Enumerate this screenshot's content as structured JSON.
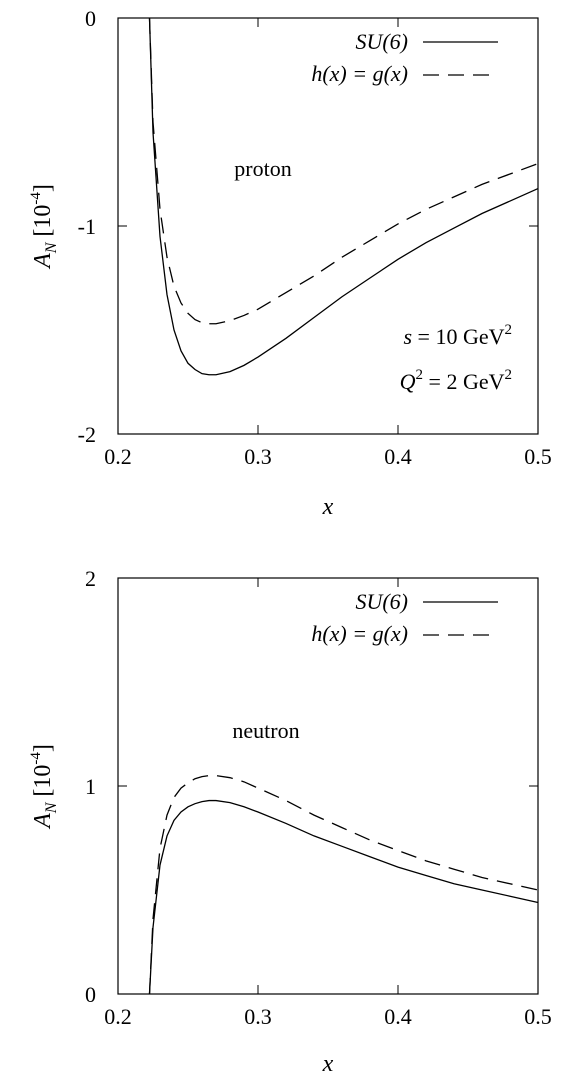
{
  "chart_data": [
    {
      "type": "line",
      "xlabel": "x",
      "ylabel_main": "A",
      "ylabel_sub": "N",
      "ylabel_unit_base": "[10",
      "ylabel_unit_exp": "-4",
      "ylabel_unit_close": "]",
      "xlim": [
        0.2,
        0.5
      ],
      "ylim": [
        -2,
        0
      ],
      "xticks": [
        0.2,
        0.3,
        0.4,
        0.5
      ],
      "xtick_labels": [
        "0.2",
        "0.3",
        "0.4",
        "0.5"
      ],
      "yticks": [
        -2,
        -1,
        0
      ],
      "ytick_labels": [
        "-2",
        "-1",
        "0"
      ],
      "legend_position": "top-right",
      "annotations": {
        "label": "proton",
        "s_line": "s = 10 GeV",
        "s_exp": "2",
        "q_line_base": "Q",
        "q_line_exp": "2",
        "q_line_rest": " = 2 GeV",
        "q_line_exp2": "2"
      },
      "series": [
        {
          "name": "SU(6)",
          "style": "solid",
          "x": [
            0.2225,
            0.225,
            0.23,
            0.235,
            0.24,
            0.245,
            0.25,
            0.255,
            0.26,
            0.265,
            0.27,
            0.28,
            0.29,
            0.3,
            0.32,
            0.34,
            0.36,
            0.38,
            0.4,
            0.42,
            0.44,
            0.46,
            0.48,
            0.5
          ],
          "y": [
            0.0,
            -0.55,
            -1.05,
            -1.33,
            -1.5,
            -1.6,
            -1.66,
            -1.69,
            -1.71,
            -1.715,
            -1.715,
            -1.7,
            -1.67,
            -1.63,
            -1.54,
            -1.44,
            -1.34,
            -1.25,
            -1.16,
            -1.08,
            -1.01,
            -0.94,
            -0.88,
            -0.82
          ]
        },
        {
          "name": "h(x) = g(x)",
          "style": "dashed",
          "x": [
            0.2225,
            0.225,
            0.23,
            0.235,
            0.24,
            0.245,
            0.25,
            0.255,
            0.26,
            0.265,
            0.27,
            0.28,
            0.29,
            0.3,
            0.32,
            0.34,
            0.36,
            0.38,
            0.4,
            0.42,
            0.44,
            0.46,
            0.48,
            0.5
          ],
          "y": [
            0.0,
            -0.5,
            -0.92,
            -1.15,
            -1.29,
            -1.37,
            -1.42,
            -1.45,
            -1.465,
            -1.47,
            -1.47,
            -1.455,
            -1.43,
            -1.4,
            -1.32,
            -1.24,
            -1.15,
            -1.07,
            -0.99,
            -0.92,
            -0.86,
            -0.8,
            -0.75,
            -0.7
          ]
        }
      ]
    },
    {
      "type": "line",
      "xlabel": "x",
      "ylabel_main": "A",
      "ylabel_sub": "N",
      "ylabel_unit_base": "[10",
      "ylabel_unit_exp": "-4",
      "ylabel_unit_close": "]",
      "xlim": [
        0.2,
        0.5
      ],
      "ylim": [
        0,
        2
      ],
      "xticks": [
        0.2,
        0.3,
        0.4,
        0.5
      ],
      "xtick_labels": [
        "0.2",
        "0.3",
        "0.4",
        "0.5"
      ],
      "yticks": [
        0,
        1,
        2
      ],
      "ytick_labels": [
        "0",
        "1",
        "2"
      ],
      "legend_position": "top-right",
      "annotations": {
        "label": "neutron"
      },
      "series": [
        {
          "name": "SU(6)",
          "style": "solid",
          "x": [
            0.2225,
            0.225,
            0.23,
            0.235,
            0.24,
            0.245,
            0.25,
            0.255,
            0.26,
            0.265,
            0.27,
            0.28,
            0.29,
            0.3,
            0.32,
            0.34,
            0.36,
            0.38,
            0.4,
            0.42,
            0.44,
            0.46,
            0.48,
            0.5
          ],
          "y": [
            0.0,
            0.32,
            0.62,
            0.76,
            0.835,
            0.875,
            0.9,
            0.915,
            0.925,
            0.93,
            0.93,
            0.92,
            0.9,
            0.875,
            0.82,
            0.76,
            0.71,
            0.66,
            0.61,
            0.57,
            0.53,
            0.5,
            0.47,
            0.44
          ]
        },
        {
          "name": "h(x) = g(x)",
          "style": "dashed",
          "x": [
            0.2225,
            0.225,
            0.23,
            0.235,
            0.24,
            0.245,
            0.25,
            0.255,
            0.26,
            0.265,
            0.27,
            0.28,
            0.29,
            0.3,
            0.32,
            0.34,
            0.36,
            0.38,
            0.4,
            0.42,
            0.44,
            0.46,
            0.48,
            0.5
          ],
          "y": [
            0.0,
            0.36,
            0.7,
            0.86,
            0.945,
            0.99,
            1.015,
            1.035,
            1.045,
            1.05,
            1.05,
            1.04,
            1.02,
            0.99,
            0.93,
            0.86,
            0.8,
            0.74,
            0.69,
            0.64,
            0.6,
            0.56,
            0.53,
            0.5
          ]
        }
      ]
    }
  ]
}
